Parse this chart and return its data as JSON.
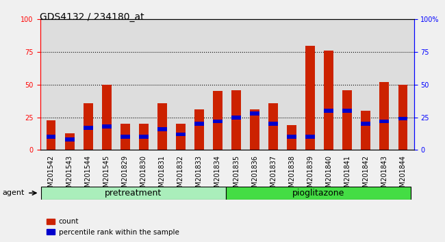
{
  "title": "GDS4132 / 234180_at",
  "categories": [
    "GSM201542",
    "GSM201543",
    "GSM201544",
    "GSM201545",
    "GSM201829",
    "GSM201830",
    "GSM201831",
    "GSM201832",
    "GSM201833",
    "GSM201834",
    "GSM201835",
    "GSM201836",
    "GSM201837",
    "GSM201838",
    "GSM201839",
    "GSM201840",
    "GSM201841",
    "GSM201842",
    "GSM201843",
    "GSM201844"
  ],
  "count_values": [
    23,
    13,
    36,
    50,
    20,
    20,
    36,
    20,
    31,
    45,
    46,
    31,
    36,
    19,
    80,
    76,
    46,
    30,
    52,
    50
  ],
  "percentile_values": [
    10,
    8,
    17,
    18,
    10,
    10,
    16,
    12,
    20,
    22,
    25,
    28,
    20,
    10,
    10,
    30,
    30,
    20,
    22,
    24
  ],
  "pretreatment_count": 10,
  "pioglitazone_count": 10,
  "group_labels": [
    "pretreatment",
    "pioglitazone"
  ],
  "group_color_pre": "#AAEEBB",
  "group_color_pio": "#44DD44",
  "bar_color_count": "#CC2200",
  "bar_color_pct": "#0000CC",
  "ylim": [
    0,
    100
  ],
  "yticks": [
    0,
    25,
    50,
    75,
    100
  ],
  "legend_count": "count",
  "legend_pct": "percentile rank within the sample",
  "agent_label": "agent",
  "background_plot": "#DDDDDD",
  "background_fig": "#F0F0F0",
  "title_fontsize": 10,
  "tick_fontsize": 7,
  "group_label_fontsize": 9,
  "bar_width": 0.5
}
